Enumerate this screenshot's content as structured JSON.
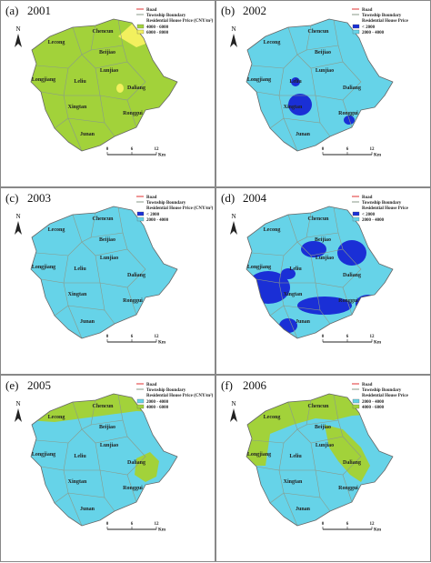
{
  "panels": [
    {
      "label": "(a)",
      "year": "2001",
      "legend": {
        "road": "Road",
        "boundary": "Township Boundary",
        "title": "Residential House Price (CNY/m²)",
        "items": [
          {
            "label": "4000 - 6000",
            "color": "#a2d23a"
          },
          {
            "label": "6000 - 8000",
            "color": "#f2f05e"
          }
        ]
      }
    },
    {
      "label": "(b)",
      "year": "2002",
      "legend": {
        "road": "Road",
        "boundary": "Township Boundary",
        "title": "Residential House Price",
        "items": [
          {
            "label": "< 2000",
            "color": "#1a2fd6"
          },
          {
            "label": "2000 - 4000",
            "color": "#66d3e8"
          }
        ]
      }
    },
    {
      "label": "(c)",
      "year": "2003",
      "legend": {
        "road": "Road",
        "boundary": "Township Boundary",
        "title": "Residential House Price (CNY/m²)",
        "items": [
          {
            "label": "< 2000",
            "color": "#1a2fd6"
          },
          {
            "label": "2000 - 4000",
            "color": "#66d3e8"
          }
        ]
      }
    },
    {
      "label": "(d)",
      "year": "2004",
      "legend": {
        "road": "Road",
        "boundary": "Township Boundary",
        "title": "Residential House Price",
        "items": [
          {
            "label": "< 2000",
            "color": "#1a2fd6"
          },
          {
            "label": "2000 - 4000",
            "color": "#66d3e8"
          }
        ]
      }
    },
    {
      "label": "(e)",
      "year": "2005",
      "legend": {
        "road": "Road",
        "boundary": "Township Boundary",
        "title": "Residential House Price (CNY/m²)",
        "items": [
          {
            "label": "2000 - 4000",
            "color": "#66d3e8"
          },
          {
            "label": "4000 - 6000",
            "color": "#a2d23a"
          }
        ]
      }
    },
    {
      "label": "(f)",
      "year": "2006",
      "legend": {
        "road": "Road",
        "boundary": "Township Boundary",
        "title": "Residential House Price",
        "items": [
          {
            "label": "2000 - 4000",
            "color": "#66d3e8"
          },
          {
            "label": "4000 - 6000",
            "color": "#a2d23a"
          }
        ]
      }
    }
  ],
  "north": "N",
  "scale": {
    "ticks": [
      0,
      6,
      12
    ],
    "unit": "Km"
  },
  "towns": [
    "Chencun",
    "Lecong",
    "Beijiao",
    "Lunjiao",
    "Longjiang",
    "Leliu",
    "Daliang",
    "Xingtan",
    "Ronggui",
    "Junan"
  ]
}
